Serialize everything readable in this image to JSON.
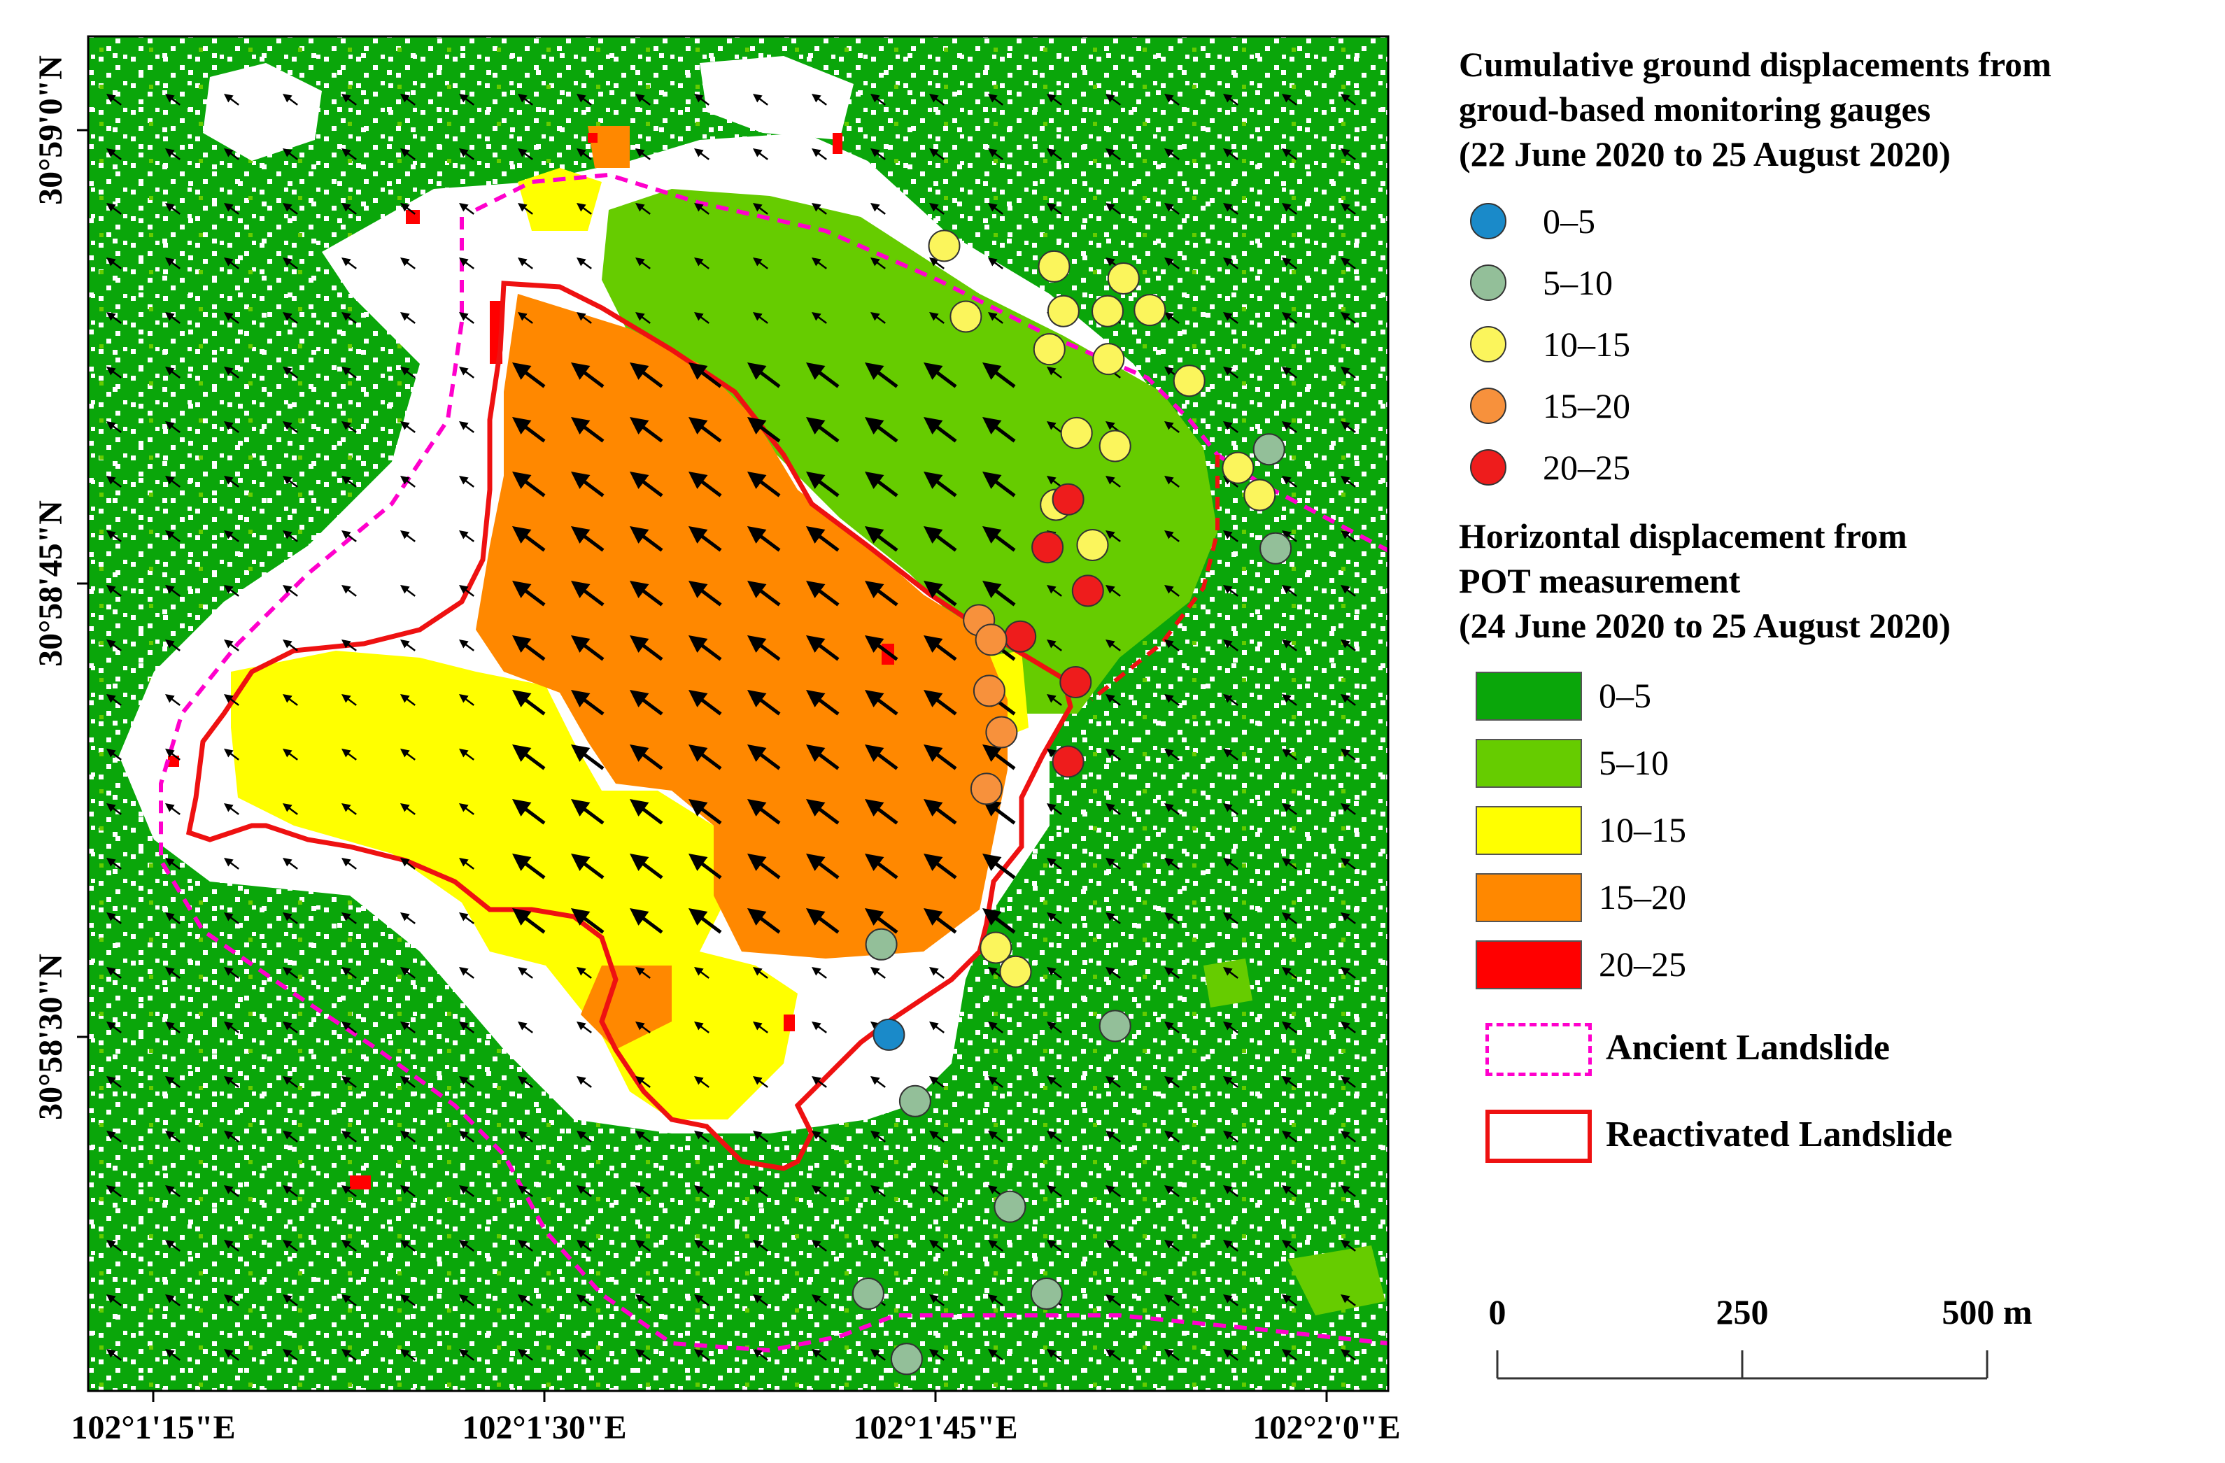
{
  "map": {
    "lat_labels": [
      "30°59'0\"N",
      "30°58'45\"N",
      "30°58'30\"N"
    ],
    "lon_labels": [
      "102°1'15\"E",
      "102°1'30\"E",
      "102°1'45\"E",
      "102°2'0\"E"
    ],
    "colors": {
      "green_0_5": "#0aa60a",
      "lightgreen_5_10": "#66cc00",
      "yellow_10_15": "#ffff00",
      "orange_15_20": "#ff8800",
      "red_20_25": "#ff0000",
      "ancient": "#ff00cc",
      "reactivated": "#ee1111"
    }
  },
  "legend": {
    "gauges_title": [
      "Cumulative ground displacements from",
      "groud-based monitoring gauges",
      "(22 June 2020 to 25 August 2020)"
    ],
    "gauge_classes": [
      {
        "label": "0–5",
        "color": "#1a8ac9"
      },
      {
        "label": "5–10",
        "color": "#93bf99"
      },
      {
        "label": "10–15",
        "color": "#fbf55c"
      },
      {
        "label": "15–20",
        "color": "#f7913c"
      },
      {
        "label": "20–25",
        "color": "#ee1c1c"
      }
    ],
    "pot_title": [
      "Horizontal displacement from",
      "POT measurement",
      "(24 June 2020 to 25 August 2020)"
    ],
    "pot_classes": [
      {
        "label": "0–5",
        "color": "#0aa60a"
      },
      {
        "label": "5–10",
        "color": "#66cc00"
      },
      {
        "label": "10–15",
        "color": "#ffff00"
      },
      {
        "label": "15–20",
        "color": "#ff8800"
      },
      {
        "label": "20–25",
        "color": "#ff0000"
      }
    ],
    "ancient_label": "Ancient Landslide",
    "reactivated_label": "Reactivated Landslide"
  },
  "scale_bar": {
    "labels": [
      "0",
      "250",
      "500 m"
    ]
  },
  "gauges": [
    {
      "class": "10–15",
      "lon": 102.02926,
      "lat": 30.98227
    },
    {
      "class": "10–15",
      "lon": 102.03043,
      "lat": 30.98208
    },
    {
      "class": "10–15",
      "lon": 102.03117,
      "lat": 30.98197
    },
    {
      "class": "10–15",
      "lon": 102.02949,
      "lat": 30.98162
    },
    {
      "class": "10–15",
      "lon": 102.03053,
      "lat": 30.98167
    },
    {
      "class": "10–15",
      "lon": 102.031,
      "lat": 30.98167
    },
    {
      "class": "10–15",
      "lon": 102.03145,
      "lat": 30.98168
    },
    {
      "class": "10–15",
      "lon": 102.03038,
      "lat": 30.98132
    },
    {
      "class": "10–15",
      "lon": 102.03101,
      "lat": 30.98123
    },
    {
      "class": "10–15",
      "lon": 102.03187,
      "lat": 30.98103
    },
    {
      "class": "10–15",
      "lon": 102.03067,
      "lat": 30.98055
    },
    {
      "class": "10–15",
      "lon": 102.03108,
      "lat": 30.98043
    },
    {
      "class": "10–15",
      "lon": 102.03239,
      "lat": 30.98023
    },
    {
      "class": "10–15",
      "lon": 102.03262,
      "lat": 30.97998
    },
    {
      "class": "10–15",
      "lon": 102.03045,
      "lat": 30.97989
    },
    {
      "class": "10–15",
      "lon": 102.03084,
      "lat": 30.97952
    },
    {
      "class": "10–15",
      "lon": 102.02981,
      "lat": 30.97582
    },
    {
      "class": "10–15",
      "lon": 102.03002,
      "lat": 30.9756
    },
    {
      "class": "5–10",
      "lon": 102.03272,
      "lat": 30.9804
    },
    {
      "class": "5–10",
      "lon": 102.03279,
      "lat": 30.97949
    },
    {
      "class": "5–10",
      "lon": 102.02859,
      "lat": 30.97585
    },
    {
      "class": "5–10",
      "lon": 102.03108,
      "lat": 30.9751
    },
    {
      "class": "5–10",
      "lon": 102.02895,
      "lat": 30.97441
    },
    {
      "class": "5–10",
      "lon": 102.02996,
      "lat": 30.97344
    },
    {
      "class": "5–10",
      "lon": 102.02845,
      "lat": 30.97264
    },
    {
      "class": "5–10",
      "lon": 102.03035,
      "lat": 30.97264
    },
    {
      "class": "5–10",
      "lon": 102.02886,
      "lat": 30.97204
    },
    {
      "class": "0–5",
      "lon": 102.02867,
      "lat": 30.97502
    },
    {
      "class": "20–25",
      "lon": 102.03058,
      "lat": 30.97994
    },
    {
      "class": "20–25",
      "lon": 102.03036,
      "lat": 30.9795
    },
    {
      "class": "20–25",
      "lon": 102.03079,
      "lat": 30.9791
    },
    {
      "class": "20–25",
      "lon": 102.03007,
      "lat": 30.97868
    },
    {
      "class": "20–25",
      "lon": 102.03066,
      "lat": 30.97826
    },
    {
      "class": "20–25",
      "lon": 102.03058,
      "lat": 30.97753
    },
    {
      "class": "15–20",
      "lon": 102.02963,
      "lat": 30.97883
    },
    {
      "class": "15–20",
      "lon": 102.02976,
      "lat": 30.97865
    },
    {
      "class": "15–20",
      "lon": 102.02974,
      "lat": 30.97818
    },
    {
      "class": "15–20",
      "lon": 102.02987,
      "lat": 30.9778
    },
    {
      "class": "15–20",
      "lon": 102.02971,
      "lat": 30.97728
    }
  ]
}
